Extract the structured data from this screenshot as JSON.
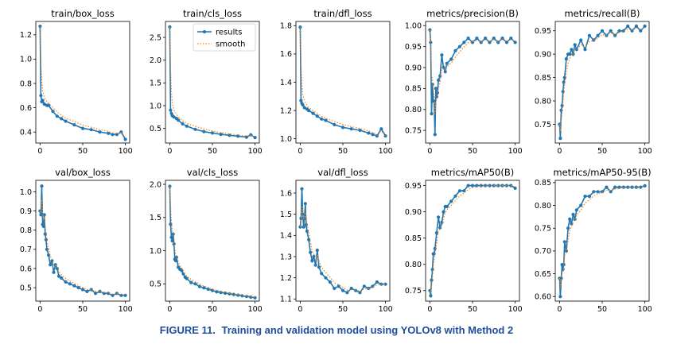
{
  "caption": {
    "label": "FIGURE 11.",
    "text": "Training and validation model using YOLOv8 with Method 2"
  },
  "legend": {
    "results": "results",
    "smooth": "smooth"
  },
  "colors": {
    "results": "#1f77b4",
    "smooth": "#ff7f0e"
  },
  "chart_data": [
    {
      "type": "line",
      "title": "train/box_loss",
      "xlim": [
        -5,
        105
      ],
      "ylim": [
        0.31,
        1.31
      ],
      "xticks": [
        0,
        50,
        100
      ],
      "yticks": [
        0.4,
        0.6,
        0.8,
        1.0,
        1.2
      ],
      "series": [
        {
          "name": "results",
          "x": [
            0,
            1,
            2,
            3,
            5,
            8,
            10,
            15,
            20,
            25,
            30,
            40,
            50,
            60,
            70,
            80,
            85,
            90,
            95,
            100
          ],
          "y": [
            1.27,
            0.7,
            0.65,
            0.66,
            0.63,
            0.62,
            0.62,
            0.57,
            0.53,
            0.51,
            0.49,
            0.46,
            0.43,
            0.42,
            0.4,
            0.39,
            0.38,
            0.38,
            0.4,
            0.34
          ]
        }
      ]
    },
    {
      "type": "line",
      "title": "train/cls_loss",
      "xlim": [
        -5,
        105
      ],
      "ylim": [
        0.18,
        2.85
      ],
      "xticks": [
        0,
        50,
        100
      ],
      "yticks": [
        0.5,
        1.0,
        1.5,
        2.0,
        2.5
      ],
      "series": [
        {
          "name": "results",
          "x": [
            0,
            1,
            2,
            3,
            5,
            8,
            10,
            15,
            20,
            30,
            40,
            50,
            60,
            70,
            80,
            90,
            95,
            100
          ],
          "y": [
            2.73,
            0.9,
            0.83,
            0.78,
            0.75,
            0.72,
            0.68,
            0.6,
            0.55,
            0.48,
            0.43,
            0.4,
            0.37,
            0.35,
            0.33,
            0.31,
            0.36,
            0.3
          ]
        }
      ]
    },
    {
      "type": "line",
      "title": "train/dfl_loss",
      "xlim": [
        -5,
        105
      ],
      "ylim": [
        0.97,
        1.83
      ],
      "xticks": [
        0,
        50,
        100
      ],
      "yticks": [
        1.0,
        1.2,
        1.4,
        1.6,
        1.8
      ],
      "series": [
        {
          "name": "results",
          "x": [
            0,
            1,
            2,
            3,
            5,
            8,
            10,
            15,
            20,
            25,
            30,
            40,
            50,
            60,
            70,
            80,
            85,
            90,
            95,
            100
          ],
          "y": [
            1.79,
            1.27,
            1.25,
            1.24,
            1.22,
            1.21,
            1.2,
            1.18,
            1.16,
            1.14,
            1.13,
            1.1,
            1.08,
            1.07,
            1.06,
            1.04,
            1.03,
            1.02,
            1.07,
            1.02
          ]
        }
      ]
    },
    {
      "type": "line",
      "title": "metrics/precision(B)",
      "xlim": [
        -5,
        105
      ],
      "ylim": [
        0.72,
        1.01
      ],
      "xticks": [
        0,
        50,
        100
      ],
      "yticks": [
        0.75,
        0.8,
        0.85,
        0.9,
        0.95,
        1.0
      ],
      "series": [
        {
          "name": "results",
          "x": [
            0,
            1,
            2,
            3,
            4,
            5,
            6,
            7,
            8,
            9,
            10,
            12,
            14,
            16,
            18,
            20,
            25,
            30,
            35,
            40,
            45,
            50,
            55,
            60,
            65,
            70,
            75,
            80,
            85,
            90,
            95,
            100
          ],
          "y": [
            0.99,
            0.96,
            0.79,
            0.86,
            0.82,
            0.82,
            0.74,
            0.85,
            0.83,
            0.84,
            0.87,
            0.88,
            0.93,
            0.9,
            0.89,
            0.91,
            0.92,
            0.94,
            0.95,
            0.96,
            0.97,
            0.96,
            0.97,
            0.96,
            0.97,
            0.96,
            0.97,
            0.96,
            0.97,
            0.96,
            0.97,
            0.96
          ]
        }
      ]
    },
    {
      "type": "line",
      "title": "metrics/recall(B)",
      "xlim": [
        -5,
        105
      ],
      "ylim": [
        0.71,
        0.97
      ],
      "xticks": [
        0,
        50,
        100
      ],
      "yticks": [
        0.75,
        0.8,
        0.85,
        0.9,
        0.95
      ],
      "series": [
        {
          "name": "results",
          "x": [
            0,
            1,
            2,
            3,
            4,
            5,
            6,
            8,
            10,
            12,
            14,
            16,
            18,
            20,
            25,
            30,
            35,
            40,
            45,
            50,
            55,
            60,
            65,
            70,
            75,
            80,
            85,
            90,
            95,
            100
          ],
          "y": [
            0.75,
            0.72,
            0.78,
            0.79,
            0.82,
            0.84,
            0.85,
            0.89,
            0.9,
            0.9,
            0.91,
            0.9,
            0.92,
            0.91,
            0.93,
            0.91,
            0.94,
            0.93,
            0.94,
            0.95,
            0.94,
            0.95,
            0.94,
            0.95,
            0.95,
            0.96,
            0.95,
            0.96,
            0.95,
            0.96
          ]
        }
      ]
    },
    {
      "type": "line",
      "title": "val/box_loss",
      "xlim": [
        -5,
        105
      ],
      "ylim": [
        0.43,
        1.06
      ],
      "xticks": [
        0,
        50,
        100
      ],
      "yticks": [
        0.5,
        0.6,
        0.7,
        0.8,
        0.9,
        1.0
      ],
      "series": [
        {
          "name": "results",
          "x": [
            0,
            1,
            2,
            3,
            4,
            5,
            6,
            7,
            8,
            10,
            12,
            14,
            16,
            18,
            20,
            22,
            25,
            30,
            35,
            40,
            45,
            50,
            55,
            60,
            65,
            70,
            75,
            80,
            85,
            90,
            95,
            100
          ],
          "y": [
            0.9,
            0.88,
            1.03,
            0.83,
            0.82,
            0.88,
            0.78,
            0.75,
            0.7,
            0.67,
            0.62,
            0.64,
            0.58,
            0.62,
            0.6,
            0.56,
            0.55,
            0.53,
            0.52,
            0.51,
            0.5,
            0.49,
            0.48,
            0.49,
            0.47,
            0.48,
            0.47,
            0.47,
            0.46,
            0.47,
            0.46,
            0.46
          ]
        }
      ]
    },
    {
      "type": "line",
      "title": "val/cls_loss",
      "xlim": [
        -5,
        105
      ],
      "ylim": [
        0.24,
        2.06
      ],
      "xticks": [
        0,
        50,
        100
      ],
      "yticks": [
        0.5,
        1.0,
        1.5,
        2.0
      ],
      "series": [
        {
          "name": "results",
          "x": [
            0,
            1,
            2,
            3,
            4,
            5,
            6,
            7,
            8,
            10,
            12,
            14,
            16,
            18,
            20,
            25,
            30,
            35,
            40,
            45,
            50,
            55,
            60,
            65,
            70,
            75,
            80,
            85,
            90,
            95,
            100
          ],
          "y": [
            1.97,
            1.4,
            1.2,
            1.15,
            1.25,
            1.1,
            0.87,
            0.85,
            0.9,
            0.75,
            0.72,
            0.7,
            0.65,
            0.6,
            0.58,
            0.52,
            0.5,
            0.46,
            0.44,
            0.42,
            0.4,
            0.38,
            0.37,
            0.36,
            0.35,
            0.34,
            0.33,
            0.32,
            0.31,
            0.3,
            0.29
          ]
        }
      ]
    },
    {
      "type": "line",
      "title": "val/dfl_loss",
      "xlim": [
        -5,
        105
      ],
      "ylim": [
        1.09,
        1.66
      ],
      "xticks": [
        0,
        50,
        100
      ],
      "yticks": [
        1.1,
        1.2,
        1.3,
        1.4,
        1.5,
        1.6
      ],
      "series": [
        {
          "name": "results",
          "x": [
            0,
            1,
            2,
            3,
            4,
            5,
            6,
            7,
            8,
            10,
            12,
            14,
            16,
            18,
            20,
            22,
            25,
            30,
            35,
            40,
            45,
            50,
            55,
            60,
            65,
            70,
            75,
            80,
            85,
            90,
            95,
            100
          ],
          "y": [
            1.44,
            1.48,
            1.62,
            1.5,
            1.44,
            1.48,
            1.55,
            1.45,
            1.42,
            1.38,
            1.32,
            1.28,
            1.3,
            1.26,
            1.33,
            1.25,
            1.22,
            1.2,
            1.18,
            1.15,
            1.16,
            1.14,
            1.13,
            1.15,
            1.14,
            1.13,
            1.16,
            1.15,
            1.16,
            1.18,
            1.17,
            1.17
          ]
        }
      ]
    },
    {
      "type": "line",
      "title": "metrics/mAP50(B)",
      "xlim": [
        -5,
        105
      ],
      "ylim": [
        0.73,
        0.96
      ],
      "xticks": [
        0,
        50,
        100
      ],
      "yticks": [
        0.75,
        0.8,
        0.85,
        0.9,
        0.95
      ],
      "series": [
        {
          "name": "results",
          "x": [
            0,
            1,
            2,
            3,
            4,
            5,
            6,
            8,
            10,
            12,
            14,
            16,
            18,
            20,
            25,
            30,
            35,
            40,
            45,
            50,
            55,
            60,
            65,
            70,
            75,
            80,
            85,
            90,
            95,
            100
          ],
          "y": [
            0.75,
            0.74,
            0.77,
            0.79,
            0.82,
            0.82,
            0.83,
            0.86,
            0.89,
            0.87,
            0.88,
            0.9,
            0.91,
            0.91,
            0.92,
            0.93,
            0.94,
            0.94,
            0.95,
            0.95,
            0.95,
            0.95,
            0.95,
            0.95,
            0.95,
            0.95,
            0.95,
            0.95,
            0.95,
            0.945
          ]
        }
      ]
    },
    {
      "type": "line",
      "title": "metrics/mAP50-95(B)",
      "xlim": [
        -5,
        105
      ],
      "ylim": [
        0.59,
        0.855
      ],
      "xticks": [
        0,
        50,
        100
      ],
      "yticks": [
        0.6,
        0.65,
        0.7,
        0.75,
        0.8,
        0.85
      ],
      "series": [
        {
          "name": "results",
          "x": [
            0,
            1,
            2,
            3,
            4,
            5,
            6,
            8,
            10,
            12,
            14,
            16,
            18,
            20,
            25,
            30,
            35,
            40,
            45,
            50,
            55,
            60,
            65,
            70,
            75,
            80,
            85,
            90,
            95,
            100
          ],
          "y": [
            0.64,
            0.6,
            0.64,
            0.67,
            0.66,
            0.67,
            0.72,
            0.7,
            0.75,
            0.77,
            0.76,
            0.78,
            0.77,
            0.79,
            0.8,
            0.82,
            0.82,
            0.83,
            0.83,
            0.83,
            0.84,
            0.83,
            0.84,
            0.84,
            0.84,
            0.84,
            0.84,
            0.84,
            0.84,
            0.843
          ]
        }
      ]
    }
  ]
}
